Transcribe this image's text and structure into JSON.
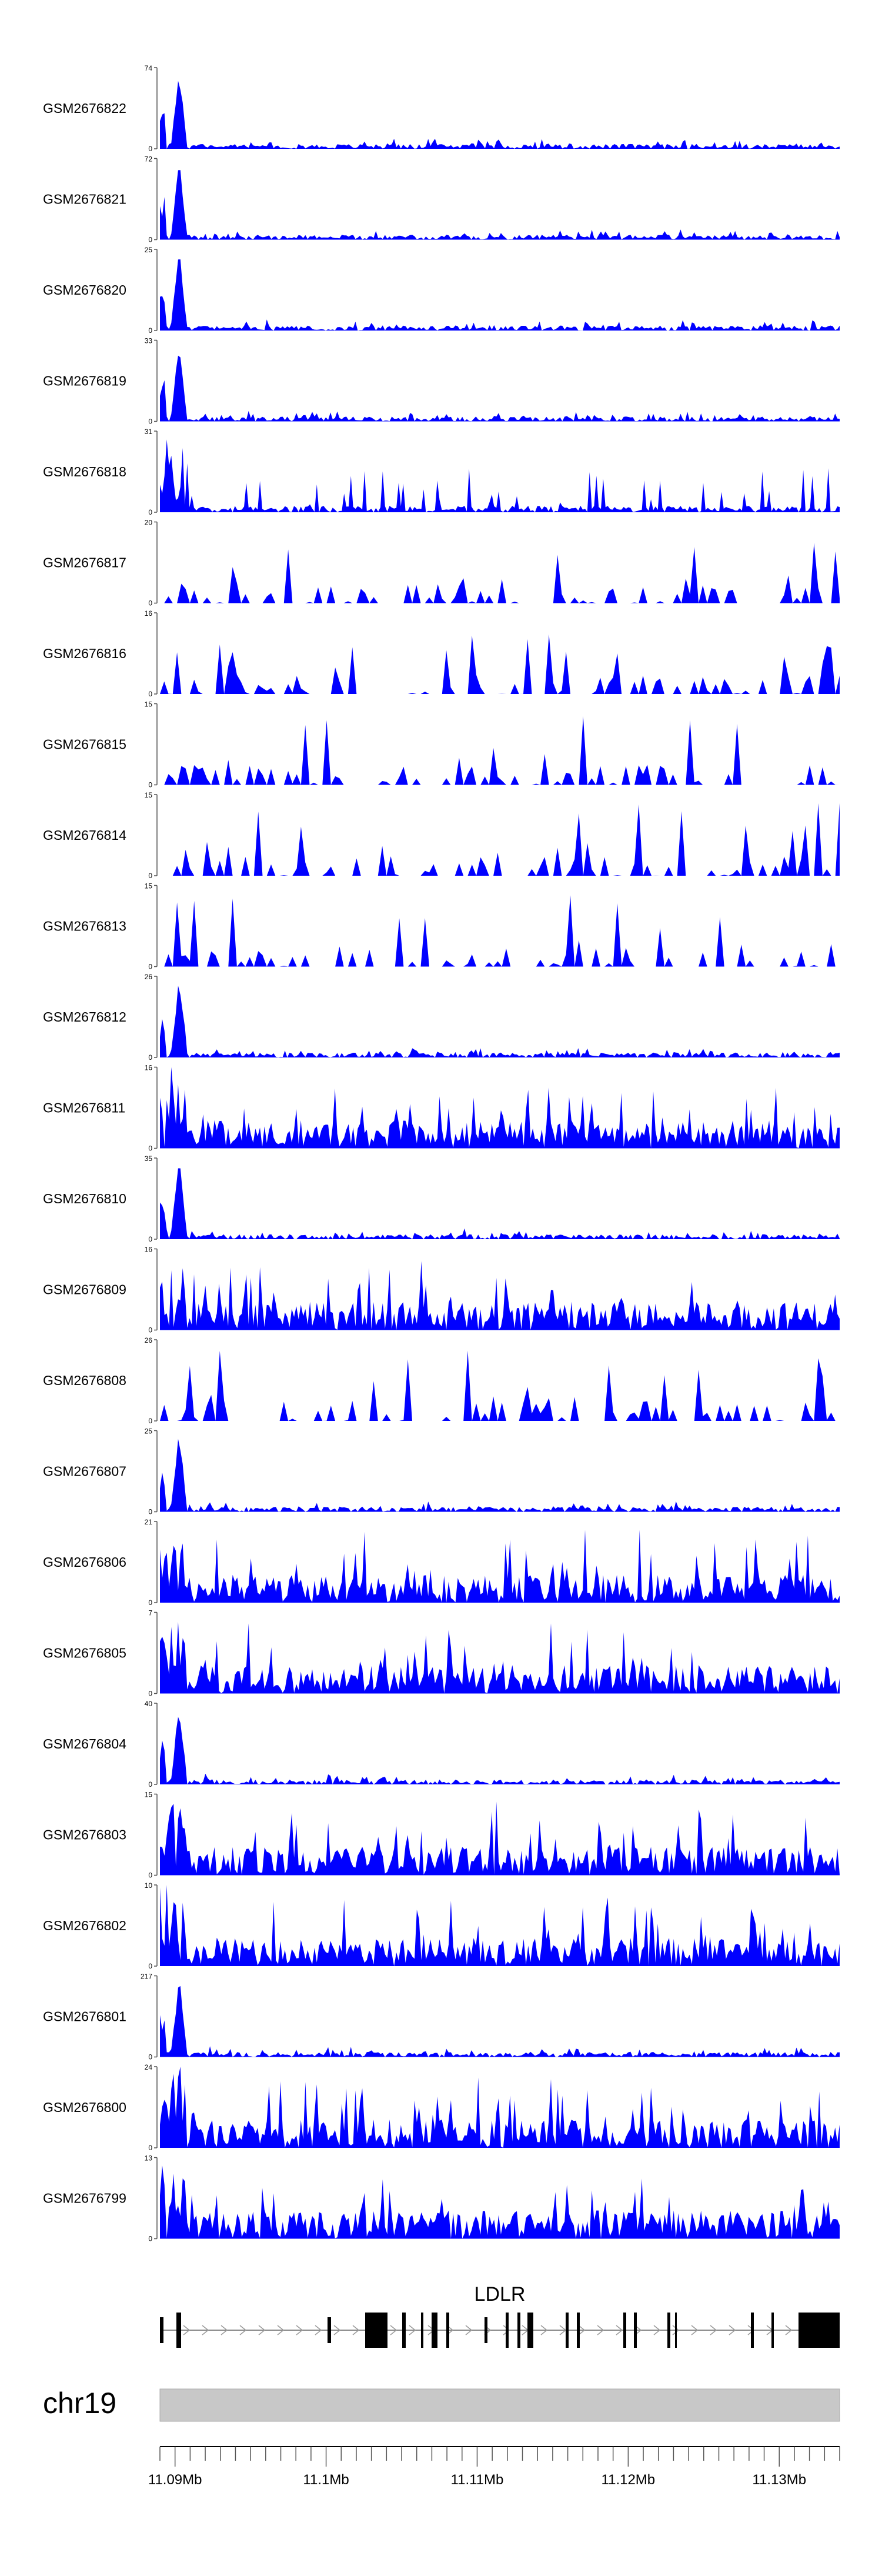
{
  "chart_data": {
    "type": "area",
    "description_free": true,
    "x_range": [
      11089000,
      11134000
    ],
    "series": [
      {
        "name": "GSM2676822",
        "ymax": 74,
        "style": "peaky",
        "seed": 22
      },
      {
        "name": "GSM2676821",
        "ymax": 72,
        "style": "peaky",
        "seed": 21
      },
      {
        "name": "GSM2676820",
        "ymax": 25,
        "style": "peaky",
        "seed": 20
      },
      {
        "name": "GSM2676819",
        "ymax": 33,
        "style": "peaky",
        "seed": 19
      },
      {
        "name": "GSM2676818",
        "ymax": 31,
        "style": "spiky",
        "seed": 18
      },
      {
        "name": "GSM2676817",
        "ymax": 20,
        "style": "sparse",
        "seed": 17
      },
      {
        "name": "GSM2676816",
        "ymax": 16,
        "style": "sparse",
        "seed": 16
      },
      {
        "name": "GSM2676815",
        "ymax": 15,
        "style": "sparse",
        "seed": 15
      },
      {
        "name": "GSM2676814",
        "ymax": 15,
        "style": "sparse",
        "seed": 14
      },
      {
        "name": "GSM2676813",
        "ymax": 15,
        "style": "sparse",
        "seed": 13
      },
      {
        "name": "GSM2676812",
        "ymax": 26,
        "style": "peaky",
        "seed": 12
      },
      {
        "name": "GSM2676811",
        "ymax": 16,
        "style": "dense",
        "seed": 11
      },
      {
        "name": "GSM2676810",
        "ymax": 35,
        "style": "peaky",
        "seed": 10
      },
      {
        "name": "GSM2676809",
        "ymax": 16,
        "style": "dense",
        "seed": 9
      },
      {
        "name": "GSM2676808",
        "ymax": 26,
        "style": "sparse",
        "seed": 8
      },
      {
        "name": "GSM2676807",
        "ymax": 25,
        "style": "peaky",
        "seed": 7
      },
      {
        "name": "GSM2676806",
        "ymax": 21,
        "style": "dense",
        "seed": 6
      },
      {
        "name": "GSM2676805",
        "ymax": 7,
        "style": "dense",
        "seed": 5
      },
      {
        "name": "GSM2676804",
        "ymax": 40,
        "style": "peaky",
        "seed": 4
      },
      {
        "name": "GSM2676803",
        "ymax": 15,
        "style": "dense",
        "seed": 3
      },
      {
        "name": "GSM2676802",
        "ymax": 10,
        "style": "dense",
        "seed": 2
      },
      {
        "name": "GSM2676801",
        "ymax": 217,
        "style": "peaky",
        "seed": 1
      },
      {
        "name": "GSM2676800",
        "ymax": 24,
        "style": "dense",
        "seed": 30
      },
      {
        "name": "GSM2676799",
        "ymax": 13,
        "style": "dense",
        "seed": 31
      }
    ],
    "y_min_label": "0",
    "gene": {
      "name": "LDLR",
      "strand": "+"
    },
    "chromosome": "chr19",
    "x_ticks": [
      "11.09Mb",
      "11.1Mb",
      "11.11Mb",
      "11.12Mb",
      "11.13Mb"
    ],
    "x_tick_values": [
      11090000,
      11100000,
      11110000,
      11120000,
      11130000
    ],
    "colors": {
      "signal": "#0000ff",
      "exon": "#000000",
      "ideogram": "#c8c8c8",
      "axis": "#555555"
    }
  }
}
